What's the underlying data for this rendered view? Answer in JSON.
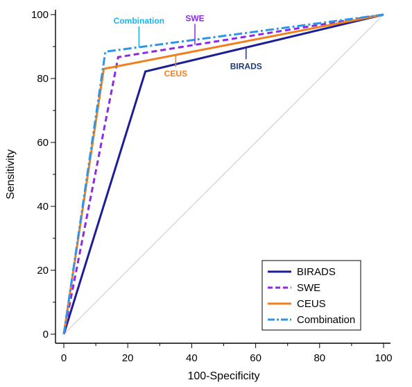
{
  "chart_data": {
    "type": "line",
    "title": "",
    "xlabel": "100-Specificity",
    "ylabel": "Sensitivity",
    "xlim": [
      0,
      100
    ],
    "ylim": [
      0,
      100
    ],
    "xticks": [
      0,
      20,
      40,
      60,
      80,
      100
    ],
    "yticks": [
      0,
      20,
      40,
      60,
      80,
      100
    ],
    "grid": false,
    "legend_position": "bottom-right",
    "reference_line": {
      "x": [
        0,
        100
      ],
      "y": [
        0,
        100
      ],
      "color": "#c8c8c8"
    },
    "series": [
      {
        "name": "BIRADS",
        "x": [
          0,
          25.5,
          100
        ],
        "y": [
          0,
          82.2,
          100
        ],
        "color": "#1c1e96",
        "style": "solid"
      },
      {
        "name": "SWE",
        "x": [
          0,
          17,
          100
        ],
        "y": [
          0,
          86.7,
          100
        ],
        "color": "#8a2be2",
        "style": "dashed"
      },
      {
        "name": "CEUS",
        "x": [
          0,
          12.5,
          100
        ],
        "y": [
          0,
          83.0,
          100
        ],
        "color": "#f07f1e",
        "style": "solid"
      },
      {
        "name": "Combination",
        "x": [
          0,
          13,
          100
        ],
        "y": [
          0,
          88.4,
          100
        ],
        "color": "#2f96e6",
        "style": "dashdot"
      }
    ],
    "annotations": [
      {
        "text": "Combination",
        "series": "Combination",
        "x": 23.5,
        "y": 89.4,
        "color": "#19b4ec"
      },
      {
        "text": "SWE",
        "series": "SWE",
        "x": 41,
        "y": 90.6,
        "color": "#8a2be2"
      },
      {
        "text": "CEUS",
        "series": "CEUS",
        "x": 35,
        "y": 87.1,
        "color": "#f07f1e"
      },
      {
        "text": "BIRADS",
        "series": "BIRADS",
        "x": 57,
        "y": 88.0,
        "color": "#1c3a7a"
      }
    ]
  }
}
